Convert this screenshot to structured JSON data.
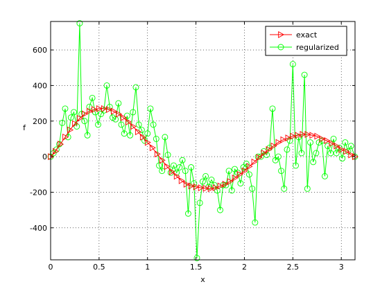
{
  "chart_data": {
    "type": "line",
    "xlabel": "x",
    "ylabel": "f",
    "xlim": [
      0,
      3.14159
    ],
    "ylim": [
      -580,
      760
    ],
    "xticks": [
      0,
      0.5,
      1,
      1.5,
      2,
      2.5,
      3
    ],
    "xtick_labels": [
      "0",
      "0.5",
      "1",
      "1.5",
      "2",
      "2.5",
      "3"
    ],
    "yticks": [
      -400,
      -200,
      0,
      200,
      400,
      600
    ],
    "ytick_labels": [
      "-400",
      "-200",
      "0",
      "200",
      "400",
      "600"
    ],
    "grid": true,
    "legend_placement": "top-right",
    "series": [
      {
        "name": "exact",
        "color": "#ff0000",
        "marker": "triangle-right",
        "x": [
          0.0,
          0.05,
          0.1,
          0.15,
          0.2,
          0.25,
          0.3,
          0.35,
          0.4,
          0.45,
          0.5,
          0.55,
          0.6,
          0.65,
          0.7,
          0.75,
          0.8,
          0.85,
          0.9,
          0.95,
          1.0,
          1.05,
          1.1,
          1.15,
          1.2,
          1.25,
          1.3,
          1.35,
          1.4,
          1.45,
          1.5,
          1.55,
          1.6,
          1.65,
          1.7,
          1.75,
          1.8,
          1.85,
          1.9,
          1.95,
          2.0,
          2.05,
          2.1,
          2.15,
          2.2,
          2.25,
          2.3,
          2.35,
          2.4,
          2.45,
          2.5,
          2.55,
          2.6,
          2.65,
          2.7,
          2.75,
          2.8,
          2.85,
          2.9,
          2.95,
          3.0,
          3.05,
          3.1,
          3.14
        ],
        "y": [
          0,
          30,
          70,
          110,
          150,
          185,
          215,
          240,
          255,
          265,
          270,
          270,
          265,
          255,
          240,
          220,
          195,
          170,
          140,
          110,
          80,
          50,
          15,
          -20,
          -55,
          -85,
          -110,
          -135,
          -155,
          -165,
          -170,
          -175,
          -178,
          -180,
          -175,
          -165,
          -155,
          -140,
          -120,
          -100,
          -80,
          -55,
          -30,
          -5,
          20,
          40,
          60,
          80,
          95,
          105,
          115,
          120,
          125,
          125,
          120,
          115,
          100,
          90,
          75,
          60,
          40,
          30,
          10,
          0
        ]
      },
      {
        "name": "regularized",
        "color": "#00ff00",
        "marker": "circle",
        "x": [
          0.0,
          0.03,
          0.06,
          0.09,
          0.12,
          0.15,
          0.18,
          0.21,
          0.24,
          0.27,
          0.3,
          0.32,
          0.35,
          0.38,
          0.4,
          0.43,
          0.46,
          0.49,
          0.52,
          0.55,
          0.58,
          0.61,
          0.64,
          0.67,
          0.7,
          0.73,
          0.76,
          0.79,
          0.82,
          0.85,
          0.88,
          0.91,
          0.94,
          0.97,
          1.0,
          1.03,
          1.06,
          1.09,
          1.12,
          1.15,
          1.18,
          1.21,
          1.24,
          1.27,
          1.3,
          1.33,
          1.36,
          1.39,
          1.42,
          1.45,
          1.48,
          1.51,
          1.54,
          1.57,
          1.6,
          1.63,
          1.66,
          1.69,
          1.72,
          1.75,
          1.78,
          1.81,
          1.84,
          1.87,
          1.9,
          1.93,
          1.96,
          1.99,
          2.02,
          2.05,
          2.08,
          2.11,
          2.14,
          2.17,
          2.2,
          2.23,
          2.26,
          2.29,
          2.32,
          2.35,
          2.38,
          2.41,
          2.44,
          2.47,
          2.5,
          2.53,
          2.56,
          2.59,
          2.62,
          2.65,
          2.68,
          2.71,
          2.74,
          2.77,
          2.8,
          2.83,
          2.86,
          2.89,
          2.92,
          2.95,
          2.98,
          3.01,
          3.04,
          3.07,
          3.1,
          3.14
        ],
        "y": [
          0,
          20,
          40,
          70,
          190,
          270,
          110,
          220,
          250,
          170,
          750,
          240,
          200,
          120,
          280,
          330,
          250,
          180,
          240,
          260,
          400,
          280,
          220,
          210,
          300,
          180,
          130,
          230,
          120,
          250,
          390,
          180,
          150,
          90,
          130,
          270,
          180,
          100,
          -50,
          -80,
          110,
          10,
          -90,
          -50,
          -90,
          -60,
          -20,
          -80,
          -320,
          -60,
          -150,
          -570,
          -260,
          -140,
          -110,
          -170,
          -130,
          -160,
          -190,
          -300,
          -160,
          -160,
          -80,
          -190,
          -70,
          -90,
          -150,
          -60,
          -40,
          -100,
          -180,
          -370,
          0,
          0,
          30,
          10,
          50,
          270,
          -20,
          0,
          -80,
          -180,
          40,
          90,
          520,
          -50,
          110,
          20,
          460,
          -180,
          80,
          -30,
          20,
          80,
          90,
          -110,
          60,
          20,
          100,
          20,
          50,
          -10,
          80,
          30,
          60,
          0
        ]
      }
    ]
  }
}
